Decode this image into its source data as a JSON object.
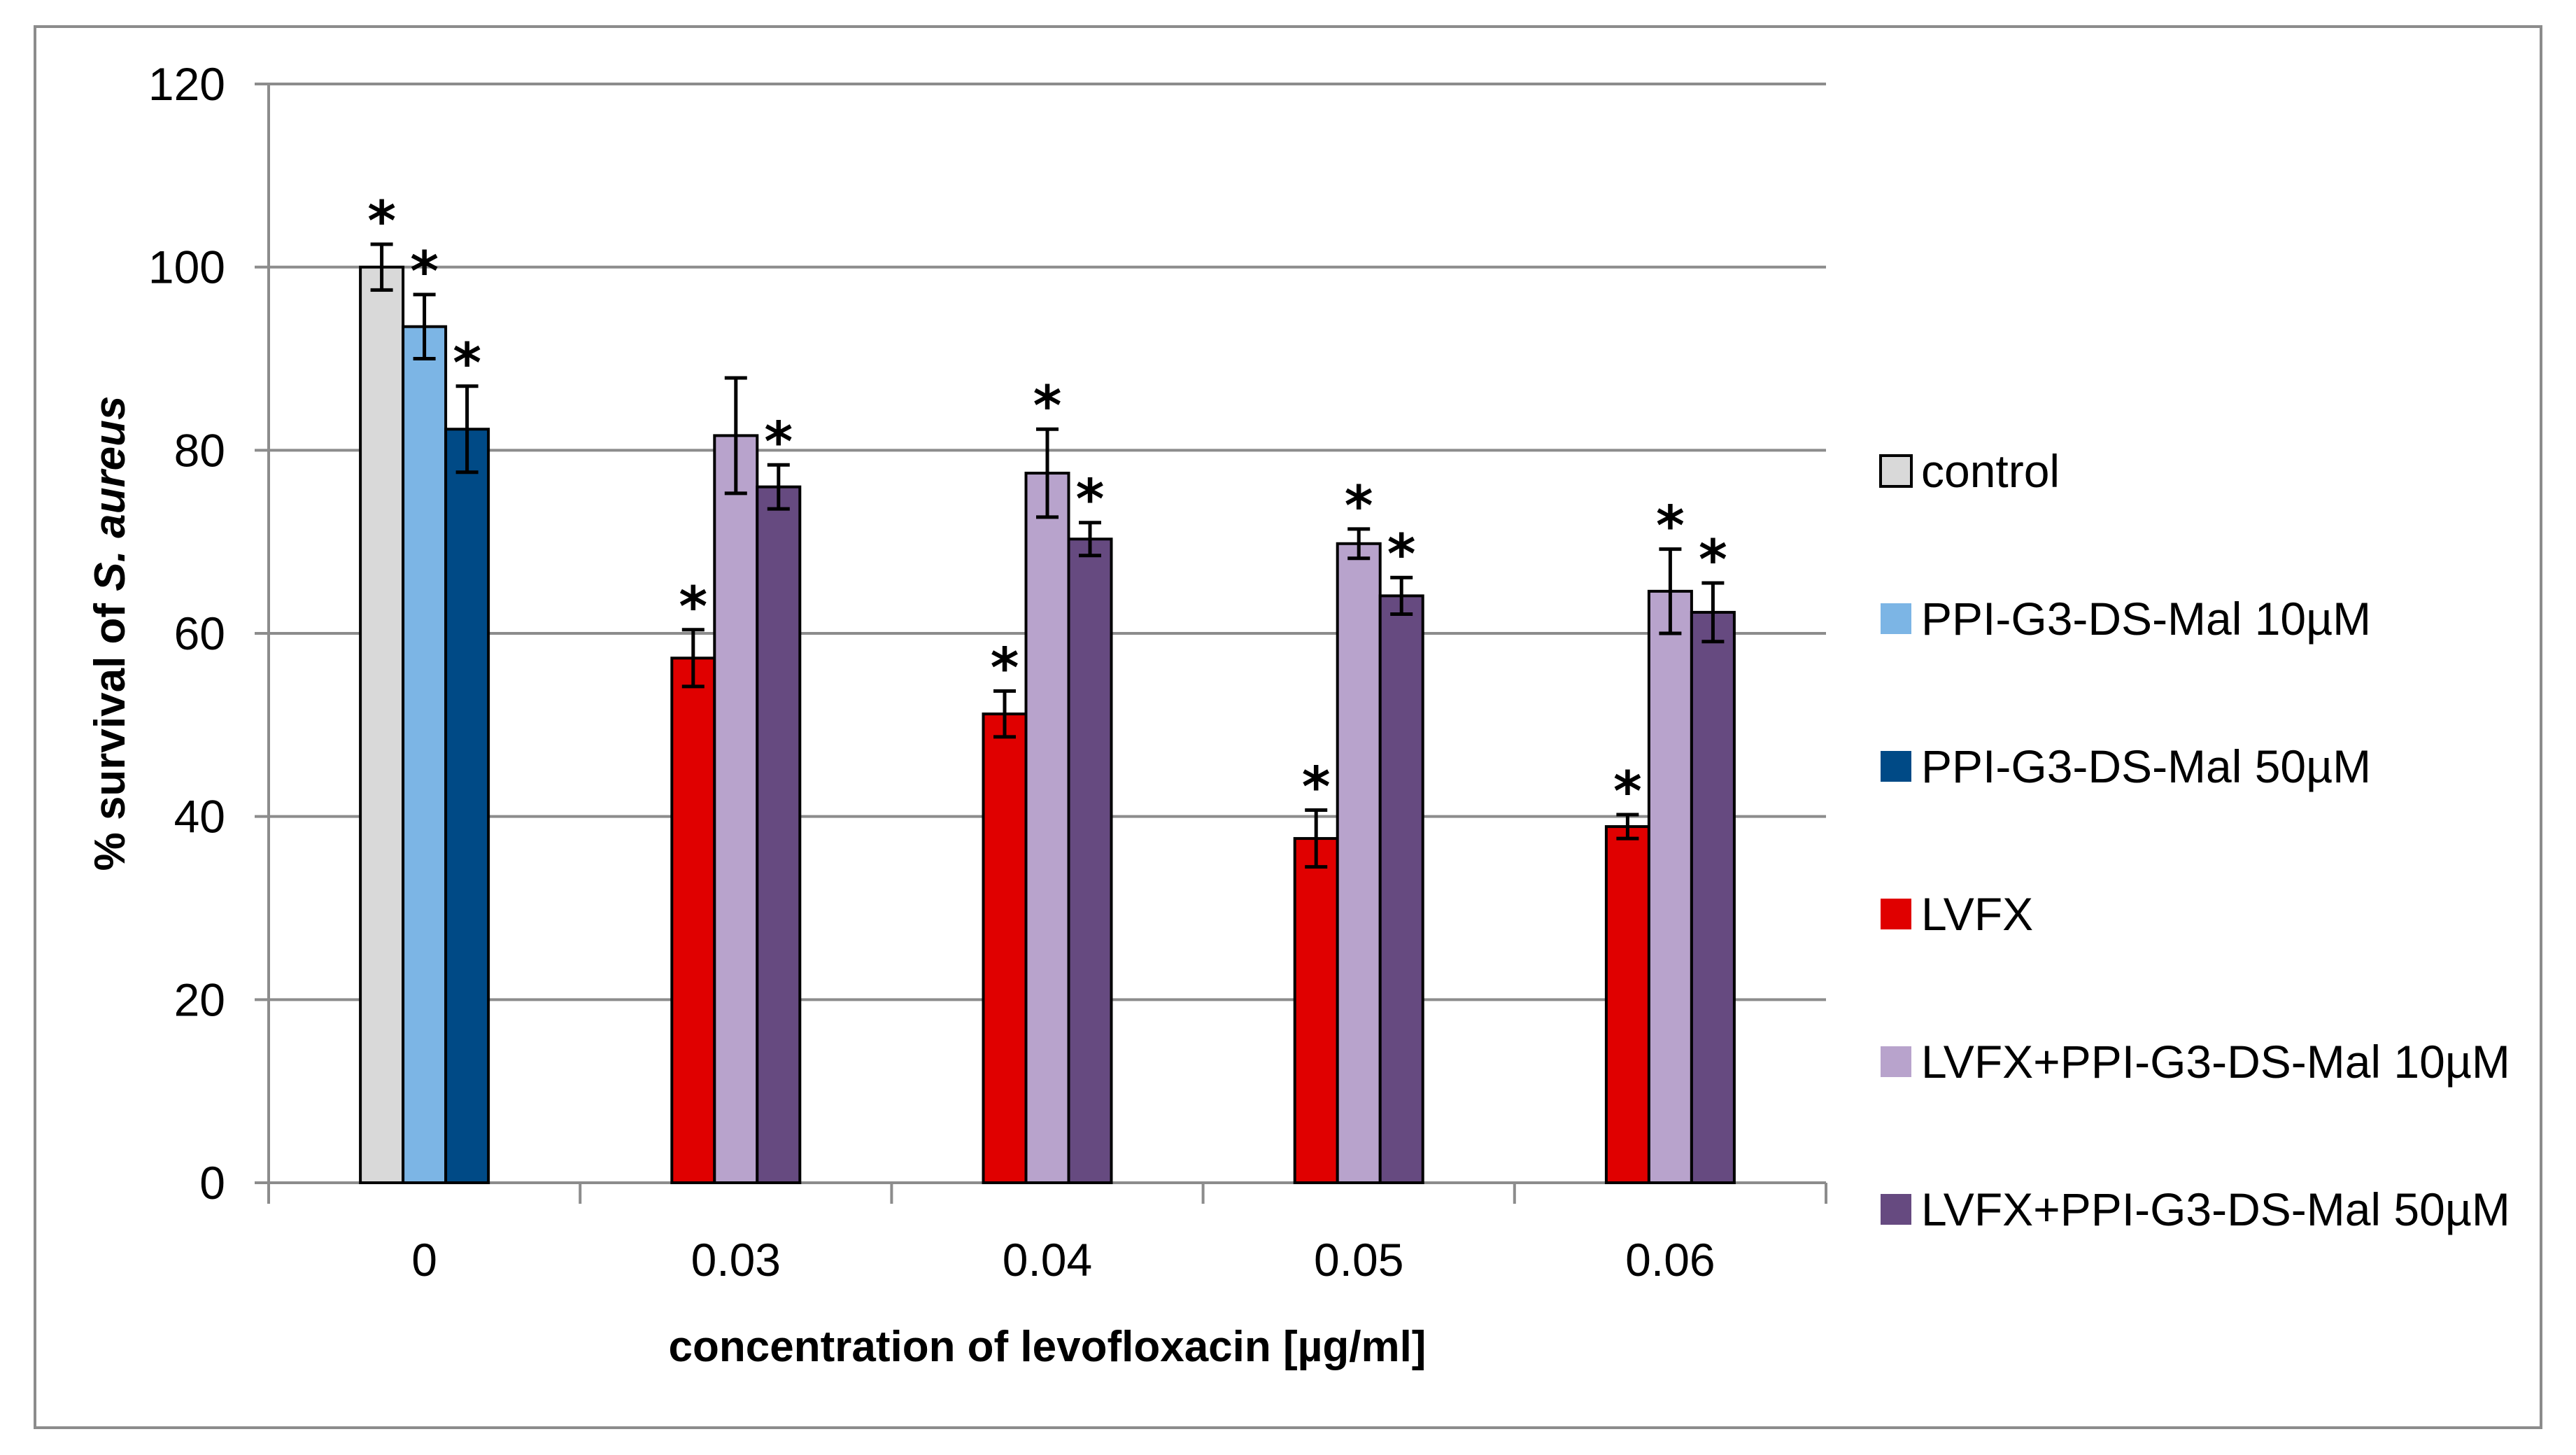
{
  "chart_data": {
    "type": "bar",
    "title": "",
    "xlabel": "concentration of levofloxacin [µg/ml]",
    "ylabel_prefix": "% survival of ",
    "ylabel_italic": "S. aureus",
    "ylim": [
      0,
      120
    ],
    "yticks": [
      "0",
      "20",
      "40",
      "60",
      "80",
      "100",
      "120"
    ],
    "grid": true,
    "legend_position": "right",
    "categories": [
      "0",
      "0.03",
      "0.04",
      "0.05",
      "0.06"
    ],
    "significance_marker": "*",
    "series": [
      {
        "name": "control",
        "color": "#d9d9d9",
        "values": [
          100,
          null,
          null,
          null,
          null
        ],
        "errors": [
          2.5,
          null,
          null,
          null,
          null
        ],
        "significant": [
          true,
          false,
          false,
          false,
          false
        ]
      },
      {
        "name": "PPI-G3-DS-Mal 10µM",
        "color": "#7cb5e5",
        "values": [
          93.5,
          null,
          null,
          null,
          null
        ],
        "errors": [
          3.5,
          null,
          null,
          null,
          null
        ],
        "significant": [
          true,
          false,
          false,
          false,
          false
        ]
      },
      {
        "name": "PPI-G3-DS-Mal 50µM",
        "color": "#004a86",
        "values": [
          82.3,
          null,
          null,
          null,
          null
        ],
        "errors": [
          4.7,
          null,
          null,
          null,
          null
        ],
        "significant": [
          true,
          false,
          false,
          false,
          false
        ]
      },
      {
        "name": "LVFX",
        "color": "#e00000",
        "values": [
          null,
          57.3,
          51.2,
          37.6,
          38.9
        ],
        "errors": [
          null,
          3.1,
          2.5,
          3.1,
          1.3
        ],
        "significant": [
          false,
          true,
          true,
          true,
          true
        ]
      },
      {
        "name": "LVFX+PPI-G3-DS-Mal 10µM",
        "color": "#b8a3cc",
        "values": [
          null,
          81.6,
          77.5,
          69.8,
          64.6
        ],
        "errors": [
          null,
          6.3,
          4.8,
          1.6,
          4.6
        ],
        "significant": [
          false,
          false,
          true,
          true,
          true
        ]
      },
      {
        "name": "LVFX+PPI-G3-DS-Mal 50µM",
        "color": "#664a80",
        "values": [
          null,
          76.0,
          70.3,
          64.1,
          62.3
        ],
        "errors": [
          null,
          2.4,
          1.8,
          2.0,
          3.2
        ],
        "significant": [
          false,
          true,
          true,
          true,
          true
        ]
      }
    ]
  }
}
